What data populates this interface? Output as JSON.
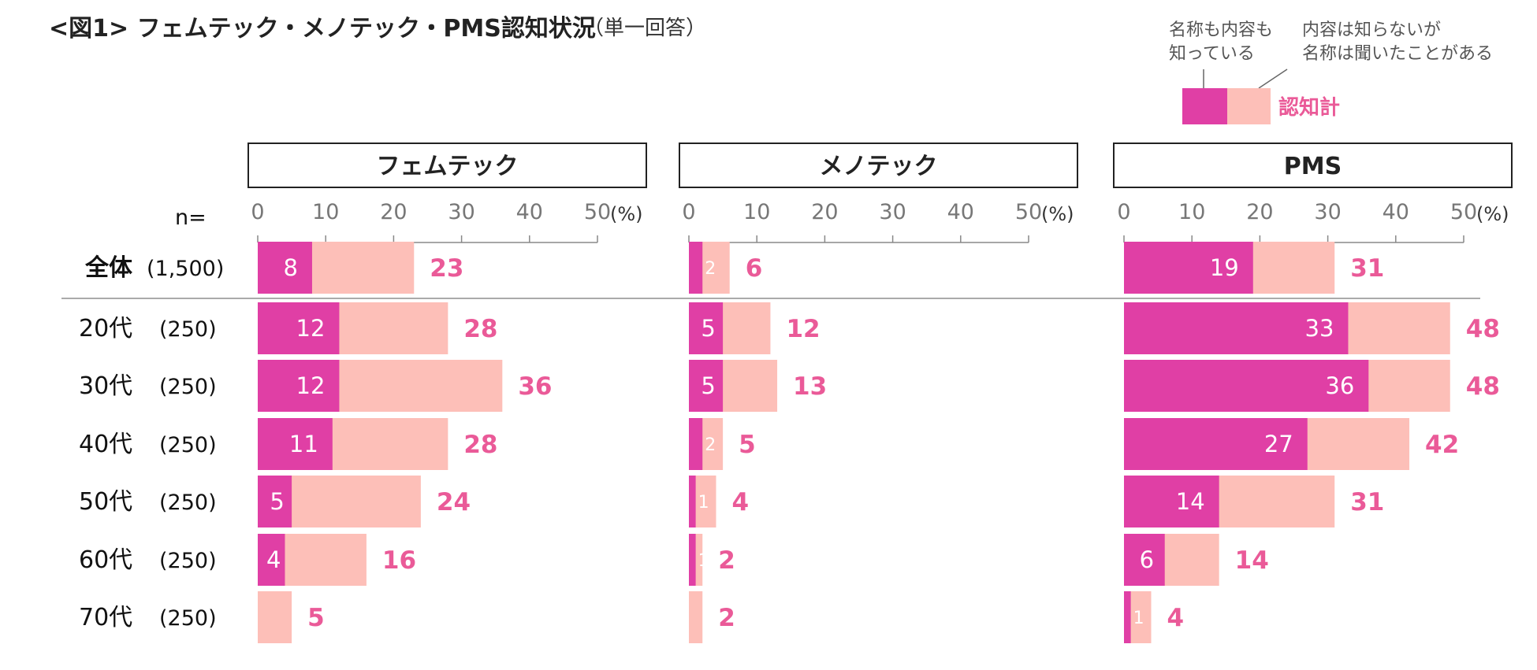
{
  "title": {
    "main": "<図1> フェムテック・メノテック・PMS認知状況",
    "sub": "（単一回答）"
  },
  "legend": {
    "known_label_lines": [
      "名称も内容も",
      "知っている"
    ],
    "heard_label_lines": [
      "内容は知らないが",
      "名称は聞いたことがある"
    ],
    "total_label": "認知計"
  },
  "n_header": "n=",
  "unit": "(%)",
  "colors": {
    "known": "#e03fa5",
    "heard": "#fdbfb8",
    "total_text": "#ea5a98",
    "axis": "#888888",
    "divider": "#aaaaaa",
    "small_inside_text": "#e03fa5"
  },
  "rows": [
    {
      "label": "全体",
      "n": "(1,500)",
      "bold": true
    },
    {
      "label": "20代",
      "n": "(250)"
    },
    {
      "label": "30代",
      "n": "(250)"
    },
    {
      "label": "40代",
      "n": "(250)"
    },
    {
      "label": "50代",
      "n": "(250)"
    },
    {
      "label": "60代",
      "n": "(250)"
    },
    {
      "label": "70代",
      "n": "(250)"
    }
  ],
  "chart_data": {
    "type": "bar",
    "orientation": "horizontal",
    "stacked": true,
    "xlim": [
      0,
      50
    ],
    "xticks": [
      0,
      10,
      20,
      30,
      40,
      50
    ],
    "categories": [
      "全体",
      "20代",
      "30代",
      "40代",
      "50代",
      "60代",
      "70代"
    ],
    "panels": [
      {
        "title": "フェムテック",
        "known": [
          8,
          12,
          12,
          11,
          5,
          4,
          0
        ],
        "total": [
          23,
          28,
          36,
          28,
          24,
          16,
          5
        ],
        "known_labels": [
          "8",
          "12",
          "12",
          "11",
          "5",
          "4",
          ""
        ],
        "total_labels": [
          "23",
          "28",
          "36",
          "28",
          "24",
          "16",
          "5"
        ]
      },
      {
        "title": "メノテック",
        "known": [
          2,
          5,
          5,
          2,
          1,
          1,
          0
        ],
        "total": [
          6,
          12,
          13,
          5,
          4,
          2,
          2
        ],
        "known_labels": [
          "2",
          "5",
          "5",
          "2",
          "1",
          "1",
          ""
        ],
        "total_labels": [
          "6",
          "12",
          "13",
          "5",
          "4",
          "2",
          "2"
        ]
      },
      {
        "title": "PMS",
        "known": [
          19,
          33,
          36,
          27,
          14,
          6,
          1
        ],
        "total": [
          31,
          48,
          48,
          42,
          31,
          14,
          4
        ],
        "known_labels": [
          "19",
          "33",
          "36",
          "27",
          "14",
          "6",
          "1"
        ],
        "total_labels": [
          "31",
          "48",
          "48",
          "42",
          "31",
          "14",
          "4"
        ]
      }
    ]
  }
}
